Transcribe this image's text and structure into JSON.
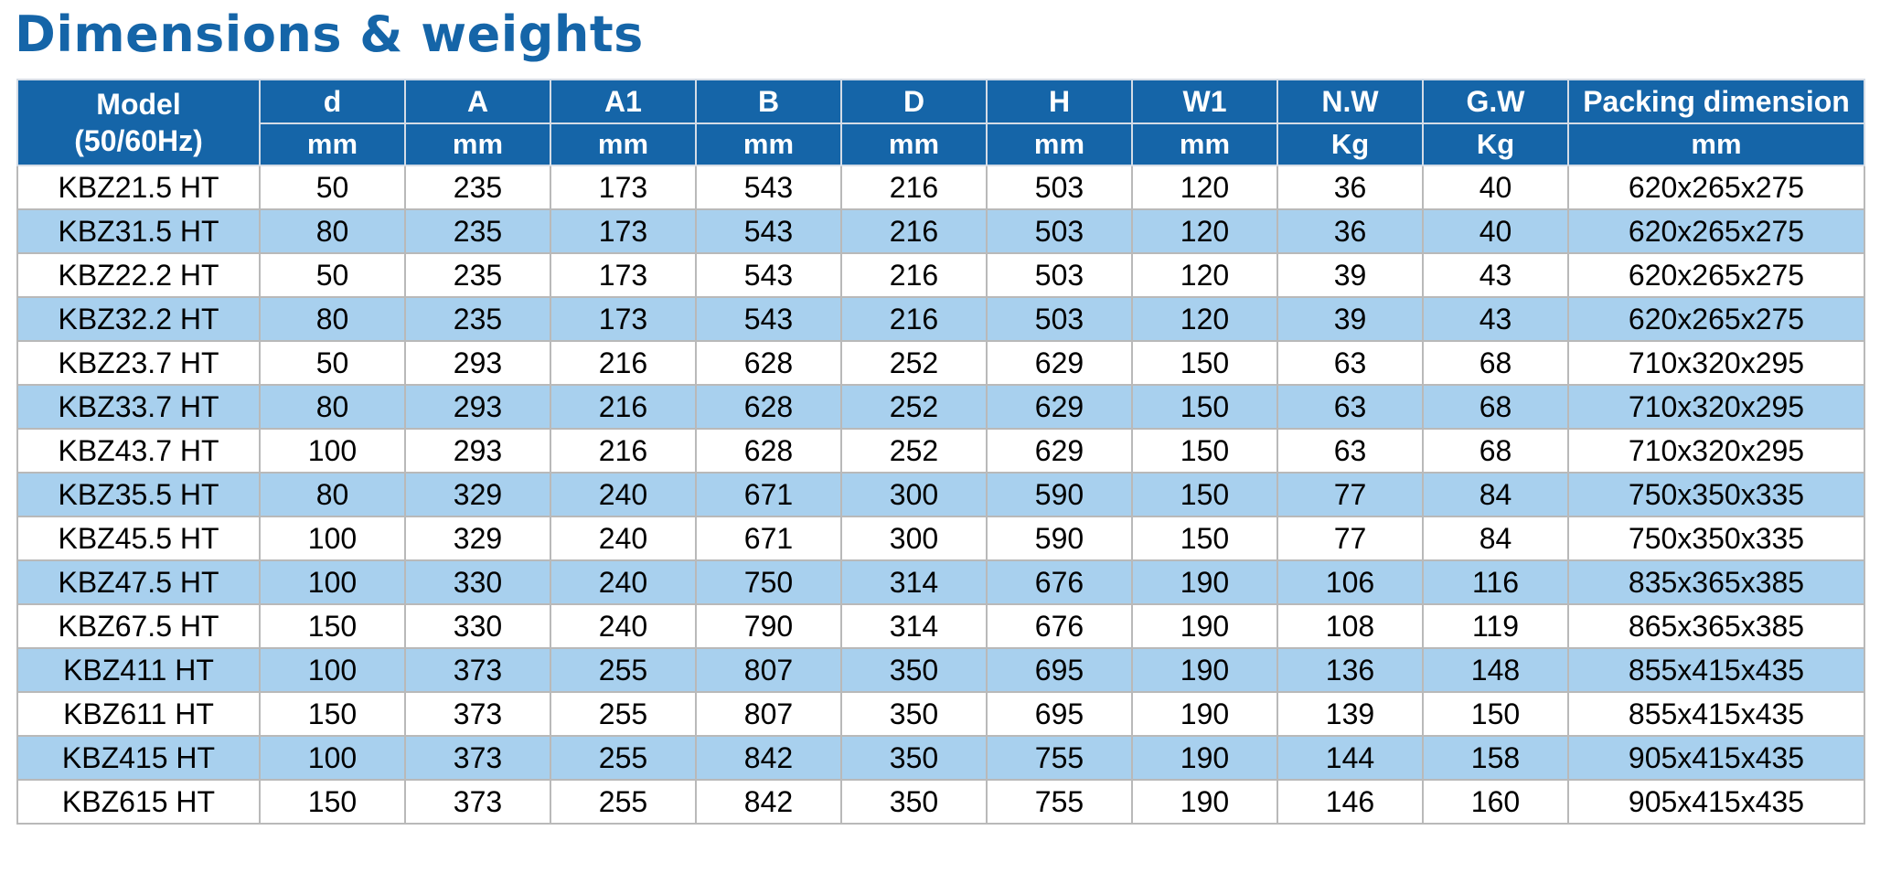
{
  "title": "Dimensions & weights",
  "colors": {
    "title": "#1565a8",
    "header_bg": "#1565a8",
    "header_text": "#ffffff",
    "row_alt_bg": "#a8d0ee",
    "border": "#b9b9b9"
  },
  "table": {
    "model_header": {
      "line1": "Model",
      "line2": "(50/60Hz)"
    },
    "columns": [
      {
        "label": "d",
        "unit": "mm"
      },
      {
        "label": "A",
        "unit": "mm"
      },
      {
        "label": "A1",
        "unit": "mm"
      },
      {
        "label": "B",
        "unit": "mm"
      },
      {
        "label": "D",
        "unit": "mm"
      },
      {
        "label": "H",
        "unit": "mm"
      },
      {
        "label": "W1",
        "unit": "mm"
      },
      {
        "label": "N.W",
        "unit": "Kg"
      },
      {
        "label": "G.W",
        "unit": "Kg"
      },
      {
        "label": "Packing dimension",
        "unit": "mm"
      }
    ],
    "rows": [
      [
        "KBZ21.5 HT",
        "50",
        "235",
        "173",
        "543",
        "216",
        "503",
        "120",
        "36",
        "40",
        "620x265x275"
      ],
      [
        "KBZ31.5 HT",
        "80",
        "235",
        "173",
        "543",
        "216",
        "503",
        "120",
        "36",
        "40",
        "620x265x275"
      ],
      [
        "KBZ22.2 HT",
        "50",
        "235",
        "173",
        "543",
        "216",
        "503",
        "120",
        "39",
        "43",
        "620x265x275"
      ],
      [
        "KBZ32.2 HT",
        "80",
        "235",
        "173",
        "543",
        "216",
        "503",
        "120",
        "39",
        "43",
        "620x265x275"
      ],
      [
        "KBZ23.7 HT",
        "50",
        "293",
        "216",
        "628",
        "252",
        "629",
        "150",
        "63",
        "68",
        "710x320x295"
      ],
      [
        "KBZ33.7 HT",
        "80",
        "293",
        "216",
        "628",
        "252",
        "629",
        "150",
        "63",
        "68",
        "710x320x295"
      ],
      [
        "KBZ43.7 HT",
        "100",
        "293",
        "216",
        "628",
        "252",
        "629",
        "150",
        "63",
        "68",
        "710x320x295"
      ],
      [
        "KBZ35.5 HT",
        "80",
        "329",
        "240",
        "671",
        "300",
        "590",
        "150",
        "77",
        "84",
        "750x350x335"
      ],
      [
        "KBZ45.5 HT",
        "100",
        "329",
        "240",
        "671",
        "300",
        "590",
        "150",
        "77",
        "84",
        "750x350x335"
      ],
      [
        "KBZ47.5 HT",
        "100",
        "330",
        "240",
        "750",
        "314",
        "676",
        "190",
        "106",
        "116",
        "835x365x385"
      ],
      [
        "KBZ67.5 HT",
        "150",
        "330",
        "240",
        "790",
        "314",
        "676",
        "190",
        "108",
        "119",
        "865x365x385"
      ],
      [
        "KBZ411 HT",
        "100",
        "373",
        "255",
        "807",
        "350",
        "695",
        "190",
        "136",
        "148",
        "855x415x435"
      ],
      [
        "KBZ611 HT",
        "150",
        "373",
        "255",
        "807",
        "350",
        "695",
        "190",
        "139",
        "150",
        "855x415x435"
      ],
      [
        "KBZ415 HT",
        "100",
        "373",
        "255",
        "842",
        "350",
        "755",
        "190",
        "144",
        "158",
        "905x415x435"
      ],
      [
        "KBZ615 HT",
        "150",
        "373",
        "255",
        "842",
        "350",
        "755",
        "190",
        "146",
        "160",
        "905x415x435"
      ]
    ]
  }
}
